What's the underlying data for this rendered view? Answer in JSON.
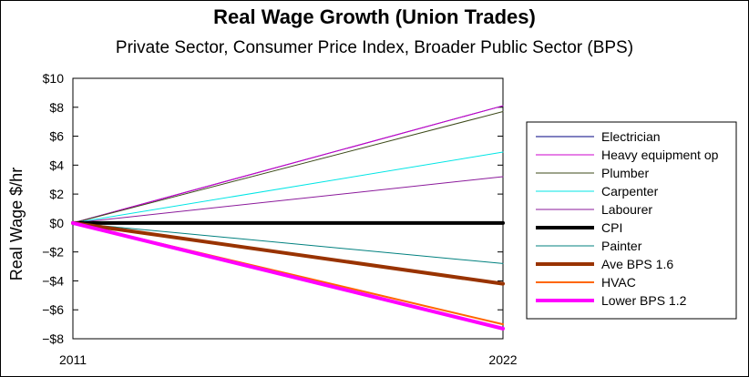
{
  "chart_data": {
    "type": "line",
    "title": "Real Wage Growth (Union Trades)",
    "subtitle": "Private Sector, Consumer Price Index, Broader Public Sector (BPS)",
    "xlabel": "",
    "ylabel": "Real Wage $/hr",
    "x": [
      "2011",
      "2022"
    ],
    "ylim": [
      -8,
      10
    ],
    "yticks": [
      10,
      8,
      6,
      4,
      2,
      0,
      -2,
      -4,
      -6,
      -8
    ],
    "ytick_labels": [
      "$10",
      "$8",
      "$6",
      "$4",
      "$2",
      "$0",
      "−$2",
      "−$4",
      "−$6",
      "−$8"
    ],
    "grid": false,
    "legend_position": "right",
    "series": [
      {
        "name": "Electrician",
        "values": [
          0,
          8.1
        ],
        "color": "#000080",
        "width": 1
      },
      {
        "name": "Heavy equipment op",
        "values": [
          0,
          8.1
        ],
        "color": "#cc00cc",
        "width": 1
      },
      {
        "name": "Plumber",
        "values": [
          0,
          7.7
        ],
        "color": "#3d4a1a",
        "width": 1
      },
      {
        "name": "Carpenter",
        "values": [
          0,
          4.9
        ],
        "color": "#00e5e5",
        "width": 1
      },
      {
        "name": "Labourer",
        "values": [
          0,
          3.2
        ],
        "color": "#8b1a9b",
        "width": 1
      },
      {
        "name": "CPI",
        "values": [
          0,
          0
        ],
        "color": "#000000",
        "width": 4
      },
      {
        "name": "Painter",
        "values": [
          0,
          -2.8
        ],
        "color": "#00807f",
        "width": 1
      },
      {
        "name": "Ave BPS 1.6",
        "values": [
          0,
          -4.2
        ],
        "color": "#993300",
        "width": 4
      },
      {
        "name": "HVAC",
        "values": [
          0,
          -7.0
        ],
        "color": "#ff6600",
        "width": 2
      },
      {
        "name": "Lower BPS 1.2",
        "values": [
          0,
          -7.3
        ],
        "color": "#ff00ff",
        "width": 4
      }
    ]
  }
}
